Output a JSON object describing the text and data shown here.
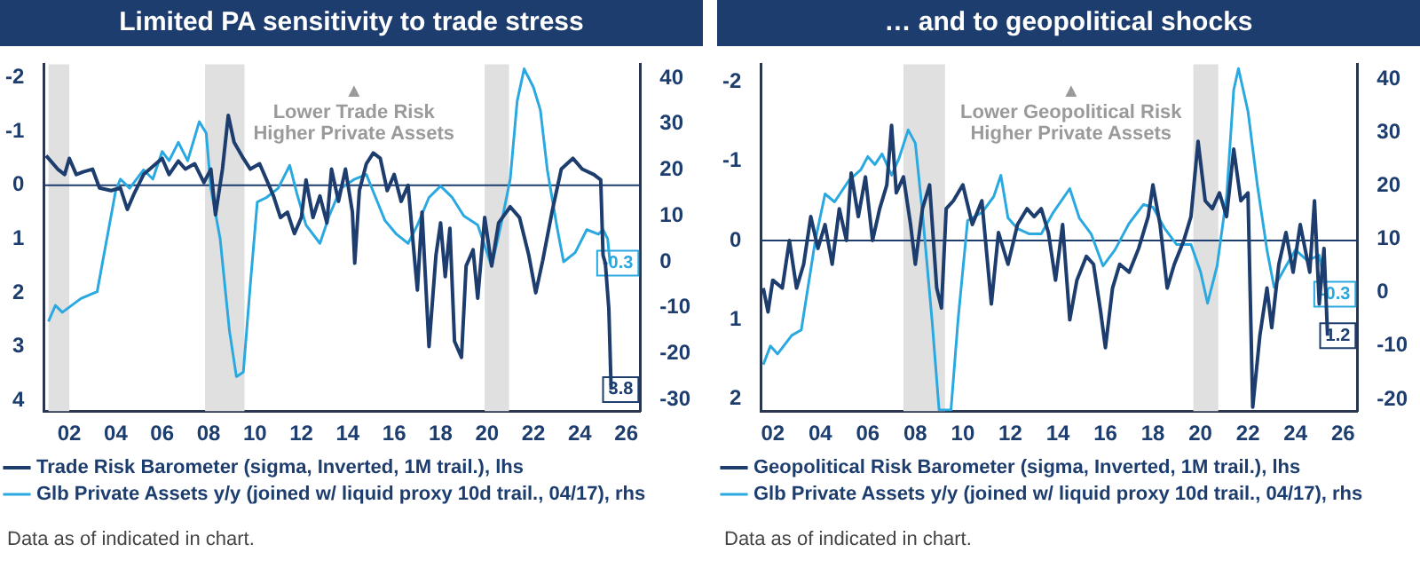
{
  "chart_data": [
    {
      "type": "line",
      "title": "Limited PA sensitivity to trade stress",
      "xlim": [
        2000.9,
        2026.6
      ],
      "xticks": [
        {
          "value": 2002,
          "label": "02"
        },
        {
          "value": 2004,
          "label": "04"
        },
        {
          "value": 2006,
          "label": "06"
        },
        {
          "value": 2008,
          "label": "08"
        },
        {
          "value": 2010,
          "label": "10"
        },
        {
          "value": 2012,
          "label": "12"
        },
        {
          "value": 2014,
          "label": "14"
        },
        {
          "value": 2016,
          "label": "16"
        },
        {
          "value": 2018,
          "label": "18"
        },
        {
          "value": 2020,
          "label": "20"
        },
        {
          "value": 2022,
          "label": "22"
        },
        {
          "value": 2024,
          "label": "24"
        },
        {
          "value": 2026,
          "label": "26"
        }
      ],
      "ylim": [
        4.2,
        -2.25
      ],
      "yticks": [
        -2,
        -1,
        0,
        1,
        2,
        3,
        4
      ],
      "y2lim": [
        -32.5,
        43
      ],
      "y2ticks": [
        -30,
        -20,
        -10,
        0,
        10,
        20,
        30,
        40
      ],
      "grid": false,
      "legend": "bottom",
      "marker": "none",
      "line_style": "solid",
      "bands": [
        {
          "axis": "x",
          "from": 2001.1,
          "to": 2002.0,
          "color": "#e0e0e0"
        },
        {
          "axis": "x",
          "from": 2007.85,
          "to": 2009.55,
          "color": "#e0e0e0"
        },
        {
          "axis": "x",
          "from": 2019.9,
          "to": 2020.95,
          "color": "#e0e0e0"
        }
      ],
      "ref_lines": [
        {
          "axis": "y",
          "value": 0,
          "color": "#1c3d6e"
        }
      ],
      "annotations": [
        "▲\nLower Trade Risk\nHigher Private Assets",
        "Data as of indicated in chart."
      ],
      "series": [
        {
          "name": "Trade Risk Barometer (sigma, Inverted, 1M trail.), lhs",
          "color": "#1c3d6e",
          "axis": "y",
          "x": [
            2001.0,
            2001.5,
            2001.8,
            2002.0,
            2002.3,
            2002.6,
            2003.0,
            2003.3,
            2003.8,
            2004.2,
            2004.5,
            2004.8,
            2005.2,
            2005.6,
            2006.0,
            2006.3,
            2006.7,
            2007.0,
            2007.4,
            2007.8,
            2008.1,
            2008.3,
            2008.6,
            2008.85,
            2009.1,
            2009.5,
            2009.8,
            2010.2,
            2010.5,
            2010.8,
            2011.1,
            2011.4,
            2011.7,
            2012.0,
            2012.2,
            2012.5,
            2012.8,
            2013.1,
            2013.3,
            2013.6,
            2013.9,
            2014.2,
            2014.3,
            2014.5,
            2014.8,
            2015.1,
            2015.4,
            2015.7,
            2016.0,
            2016.3,
            2016.6,
            2016.8,
            2017.0,
            2017.2,
            2017.5,
            2017.8,
            2018.0,
            2018.2,
            2018.4,
            2018.6,
            2018.9,
            2019.1,
            2019.4,
            2019.6,
            2019.9,
            2020.2,
            2020.5,
            2021.0,
            2021.4,
            2021.8,
            2022.1,
            2022.4,
            2022.8,
            2023.2,
            2023.7,
            2024.1,
            2024.6,
            2024.9,
            2025.0,
            2025.1,
            2025.25,
            2025.35
          ],
          "values": [
            -0.55,
            -0.3,
            -0.2,
            -0.5,
            -0.2,
            -0.25,
            -0.3,
            0.05,
            0.1,
            0.05,
            0.45,
            0.15,
            -0.2,
            -0.35,
            -0.5,
            -0.2,
            -0.45,
            -0.3,
            -0.4,
            -0.05,
            -0.3,
            0.55,
            -0.3,
            -1.3,
            -0.8,
            -0.5,
            -0.3,
            -0.4,
            -0.1,
            0.2,
            0.6,
            0.5,
            0.9,
            0.6,
            -0.1,
            0.6,
            0.2,
            0.7,
            -0.3,
            0.3,
            -0.3,
            0.5,
            1.45,
            0.1,
            -0.4,
            -0.6,
            -0.5,
            0.1,
            -0.2,
            0.3,
            0.0,
            1.0,
            1.95,
            0.5,
            3.0,
            1.3,
            0.7,
            1.7,
            0.8,
            2.9,
            3.2,
            1.5,
            1.2,
            2.1,
            0.6,
            1.5,
            0.7,
            0.4,
            0.6,
            1.3,
            2.0,
            1.4,
            0.5,
            -0.3,
            -0.5,
            -0.3,
            -0.2,
            -0.1,
            1.3,
            1.45,
            2.3,
            3.8
          ],
          "value_labels": [
            null,
            null,
            null,
            null,
            null,
            null,
            null,
            null,
            null,
            null,
            null,
            null,
            null,
            null,
            null,
            null,
            null,
            null,
            null,
            null,
            null,
            null,
            null,
            null,
            null,
            null,
            null,
            null,
            null,
            null,
            null,
            null,
            null,
            null,
            null,
            null,
            null,
            null,
            null,
            null,
            null,
            null,
            null,
            null,
            null,
            null,
            null,
            null,
            null,
            null,
            null,
            null,
            null,
            null,
            null,
            null,
            null,
            null,
            null,
            null,
            null,
            null,
            null,
            null,
            null,
            null,
            null,
            null,
            null,
            null,
            null,
            null,
            null,
            null,
            null,
            null,
            null,
            null,
            null,
            null,
            null,
            "3.8"
          ]
        },
        {
          "name": "Glb Private Assets y/y (joined w/ liquid proxy 10d trail., 04/17), rhs",
          "color": "#2aa9e0",
          "axis": "y2",
          "x": [
            2001.1,
            2001.4,
            2001.7,
            2002.5,
            2003.2,
            2004.0,
            2004.2,
            2004.6,
            2005.2,
            2005.6,
            2006.0,
            2006.3,
            2006.7,
            2007.1,
            2007.6,
            2007.9,
            2008.1,
            2008.5,
            2008.9,
            2009.2,
            2009.5,
            2009.8,
            2010.1,
            2010.5,
            2011.0,
            2011.5,
            2011.8,
            2012.2,
            2012.8,
            2013.2,
            2013.7,
            2014.3,
            2014.8,
            2015.2,
            2015.6,
            2016.1,
            2016.6,
            2017.0,
            2017.5,
            2018.0,
            2018.5,
            2019.0,
            2019.6,
            2020.2,
            2020.6,
            2021.0,
            2021.3,
            2021.6,
            2022.0,
            2022.3,
            2022.6,
            2023.0,
            2023.3,
            2023.8,
            2024.3,
            2024.8,
            2025.0,
            2025.2,
            2025.3
          ],
          "values": [
            -13,
            -9.5,
            -11,
            -8,
            -6.5,
            15.5,
            18,
            16,
            20,
            18,
            24,
            22,
            26,
            22,
            30.5,
            28,
            16,
            5,
            -15,
            -25,
            -24,
            -5,
            13,
            14,
            16,
            21,
            15,
            8,
            4,
            10,
            16,
            18,
            19,
            14,
            9,
            6,
            4,
            8,
            14,
            16.5,
            14,
            10,
            8,
            -1,
            8,
            18,
            35,
            42,
            38,
            33,
            20,
            8,
            0,
            2,
            7,
            6,
            7,
            5,
            -0.3
          ],
          "value_labels": [
            null,
            null,
            null,
            null,
            null,
            null,
            null,
            null,
            null,
            null,
            null,
            null,
            null,
            null,
            null,
            null,
            null,
            null,
            null,
            null,
            null,
            null,
            null,
            null,
            null,
            null,
            null,
            null,
            null,
            null,
            null,
            null,
            null,
            null,
            null,
            null,
            null,
            null,
            null,
            null,
            null,
            null,
            null,
            null,
            null,
            null,
            null,
            null,
            null,
            null,
            null,
            null,
            null,
            null,
            null,
            null,
            null,
            null,
            "-0.3"
          ]
        }
      ]
    },
    {
      "type": "line",
      "title": "… and to geopolitical shocks",
      "xlim": [
        2001.5,
        2026.6
      ],
      "xticks": [
        {
          "value": 2002,
          "label": "02"
        },
        {
          "value": 2004,
          "label": "04"
        },
        {
          "value": 2006,
          "label": "06"
        },
        {
          "value": 2008,
          "label": "08"
        },
        {
          "value": 2010,
          "label": "10"
        },
        {
          "value": 2012,
          "label": "12"
        },
        {
          "value": 2014,
          "label": "14"
        },
        {
          "value": 2016,
          "label": "16"
        },
        {
          "value": 2018,
          "label": "18"
        },
        {
          "value": 2020,
          "label": "20"
        },
        {
          "value": 2022,
          "label": "22"
        },
        {
          "value": 2024,
          "label": "24"
        },
        {
          "value": 2026,
          "label": "26"
        }
      ],
      "ylim": [
        2.15,
        -2.22
      ],
      "yticks": [
        -2,
        -1,
        0,
        1,
        2
      ],
      "y2lim": [
        -22.2,
        42.8
      ],
      "y2ticks": [
        -20,
        -10,
        0,
        10,
        20,
        30,
        40
      ],
      "grid": false,
      "legend": "bottom",
      "marker": "none",
      "line_style": "solid",
      "bands": [
        {
          "axis": "x",
          "from": 2007.5,
          "to": 2009.25,
          "color": "#e0e0e0"
        },
        {
          "axis": "x",
          "from": 2019.7,
          "to": 2020.75,
          "color": "#e0e0e0"
        }
      ],
      "ref_lines": [
        {
          "axis": "y",
          "value": 0,
          "color": "#1c3d6e"
        }
      ],
      "annotations": [
        "▲\nLower Geopolitical Risk\nHigher Private Assets",
        "Data as of indicated in chart."
      ],
      "series": [
        {
          "name": "Geopolitical Risk Barometer (sigma, Inverted, 1M trail.), lhs",
          "color": "#1c3d6e",
          "axis": "y",
          "x": [
            2001.6,
            2001.8,
            2002.0,
            2002.4,
            2002.7,
            2003.0,
            2003.3,
            2003.6,
            2003.9,
            2004.2,
            2004.5,
            2004.8,
            2005.1,
            2005.3,
            2005.6,
            2005.9,
            2006.2,
            2006.5,
            2006.8,
            2007.0,
            2007.2,
            2007.5,
            2007.8,
            2008.0,
            2008.3,
            2008.6,
            2008.9,
            2009.1,
            2009.3,
            2009.6,
            2010.0,
            2010.4,
            2010.8,
            2011.2,
            2011.5,
            2011.9,
            2012.3,
            2012.7,
            2013.0,
            2013.3,
            2013.6,
            2013.9,
            2014.2,
            2014.5,
            2014.8,
            2015.2,
            2015.5,
            2015.8,
            2016.0,
            2016.3,
            2016.6,
            2017.0,
            2017.4,
            2017.8,
            2018.0,
            2018.3,
            2018.6,
            2018.9,
            2019.3,
            2019.6,
            2019.9,
            2020.2,
            2020.5,
            2020.8,
            2021.1,
            2021.4,
            2021.7,
            2022.0,
            2022.2,
            2022.5,
            2022.8,
            2023.0,
            2023.3,
            2023.6,
            2023.9,
            2024.2,
            2024.6,
            2024.8,
            2025.0,
            2025.2,
            2025.35
          ],
          "values": [
            0.6,
            0.9,
            0.5,
            0.6,
            0.0,
            0.6,
            0.3,
            -0.3,
            0.1,
            -0.2,
            0.3,
            -0.4,
            0.0,
            -0.85,
            -0.3,
            -0.8,
            0.0,
            -0.4,
            -0.7,
            -1.45,
            -0.6,
            -0.8,
            -0.2,
            0.3,
            -0.4,
            -0.7,
            0.6,
            0.85,
            -0.4,
            -0.5,
            -0.7,
            -0.2,
            -0.5,
            0.8,
            -0.1,
            0.3,
            -0.2,
            -0.4,
            -0.3,
            -0.4,
            -0.1,
            0.5,
            -0.2,
            1.0,
            0.5,
            0.2,
            0.3,
            0.9,
            1.35,
            0.6,
            0.3,
            0.4,
            0.1,
            -0.3,
            -0.7,
            -0.2,
            0.6,
            0.3,
            0.0,
            -0.3,
            -1.25,
            -0.5,
            -0.4,
            -0.6,
            -0.3,
            -1.15,
            -0.5,
            -0.6,
            2.1,
            1.2,
            0.6,
            1.1,
            0.3,
            -0.1,
            0.4,
            -0.2,
            0.4,
            -0.5,
            0.8,
            0.1,
            1.2
          ],
          "value_labels": [
            null,
            null,
            null,
            null,
            null,
            null,
            null,
            null,
            null,
            null,
            null,
            null,
            null,
            null,
            null,
            null,
            null,
            null,
            null,
            null,
            null,
            null,
            null,
            null,
            null,
            null,
            null,
            null,
            null,
            null,
            null,
            null,
            null,
            null,
            null,
            null,
            null,
            null,
            null,
            null,
            null,
            null,
            null,
            null,
            null,
            null,
            null,
            null,
            null,
            null,
            null,
            null,
            null,
            null,
            null,
            null,
            null,
            null,
            null,
            null,
            null,
            null,
            null,
            null,
            null,
            null,
            null,
            null,
            null,
            null,
            null,
            null,
            null,
            null,
            null,
            null,
            null,
            null,
            null,
            null,
            "1.2"
          ]
        },
        {
          "name": "Glb Private Assets y/y (joined w/ liquid proxy 10d trail., 04/17), rhs",
          "color": "#2aa9e0",
          "axis": "y2",
          "x": [
            2001.6,
            2001.9,
            2002.2,
            2002.8,
            2003.2,
            2003.8,
            2004.2,
            2004.6,
            2005.2,
            2005.7,
            2006.0,
            2006.3,
            2006.6,
            2007.0,
            2007.3,
            2007.7,
            2008.0,
            2008.3,
            2008.7,
            2009.0,
            2009.5,
            2009.8,
            2010.2,
            2010.8,
            2011.3,
            2011.6,
            2011.9,
            2012.3,
            2012.8,
            2013.3,
            2013.8,
            2014.5,
            2014.9,
            2015.4,
            2015.9,
            2016.4,
            2017.0,
            2017.6,
            2018.0,
            2018.5,
            2019.0,
            2019.6,
            2020.0,
            2020.3,
            2020.7,
            2021.1,
            2021.4,
            2021.6,
            2022.0,
            2022.4,
            2022.8,
            2023.1,
            2023.6,
            2024.0,
            2024.5,
            2025.0,
            2025.3
          ],
          "values": [
            -13.5,
            -10,
            -11.5,
            -8,
            -7,
            10,
            18.5,
            17,
            21,
            23,
            25.5,
            24,
            26,
            22,
            25,
            30.5,
            28,
            15,
            -5,
            -22,
            -22,
            -5,
            13.5,
            15,
            18,
            22,
            14,
            12,
            11,
            11,
            15,
            19.5,
            14,
            11,
            5,
            8,
            13,
            16.5,
            16,
            12,
            9,
            9,
            4,
            -2,
            5,
            18,
            38,
            42,
            34,
            20,
            8,
            1,
            5,
            8,
            6,
            7,
            -0.3
          ],
          "value_labels": [
            null,
            null,
            null,
            null,
            null,
            null,
            null,
            null,
            null,
            null,
            null,
            null,
            null,
            null,
            null,
            null,
            null,
            null,
            null,
            null,
            null,
            null,
            null,
            null,
            null,
            null,
            null,
            null,
            null,
            null,
            null,
            null,
            null,
            null,
            null,
            null,
            null,
            null,
            null,
            null,
            null,
            null,
            null,
            null,
            null,
            null,
            null,
            null,
            null,
            null,
            null,
            null,
            null,
            null,
            null,
            null,
            "-0.3"
          ]
        }
      ]
    }
  ]
}
